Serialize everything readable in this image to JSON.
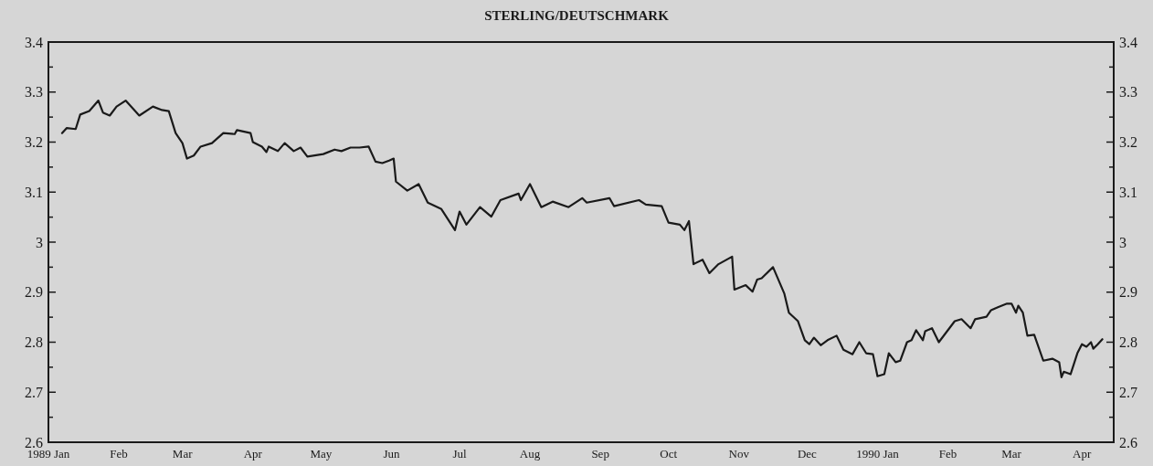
{
  "chart_data": {
    "type": "line",
    "title": "STERLING/DEUTSCHMARK",
    "x": [
      "1989-01-07",
      "1989-01-09",
      "1989-01-13",
      "1989-01-15",
      "1989-01-19",
      "1989-01-23",
      "1989-01-25",
      "1989-01-28",
      "1989-01-31",
      "1989-02-04",
      "1989-02-06",
      "1989-02-10",
      "1989-02-16",
      "1989-02-20",
      "1989-02-23",
      "1989-02-26",
      "1989-03-01",
      "1989-03-03",
      "1989-03-06",
      "1989-03-09",
      "1989-03-14",
      "1989-03-19",
      "1989-03-24",
      "1989-03-25",
      "1989-03-31",
      "1989-04-01",
      "1989-04-05",
      "1989-04-07",
      "1989-04-08",
      "1989-04-12",
      "1989-04-15",
      "1989-04-19",
      "1989-04-22",
      "1989-04-25",
      "1989-05-02",
      "1989-05-07",
      "1989-05-10",
      "1989-05-14",
      "1989-05-18",
      "1989-05-22",
      "1989-05-25",
      "1989-05-28",
      "1989-05-31",
      "1989-06-02",
      "1989-06-03",
      "1989-06-08",
      "1989-06-13",
      "1989-06-17",
      "1989-06-23",
      "1989-06-29",
      "1989-07-01",
      "1989-07-04",
      "1989-07-10",
      "1989-07-15",
      "1989-07-19",
      "1989-07-27",
      "1989-07-28",
      "1989-08-01",
      "1989-08-06",
      "1989-08-11",
      "1989-08-18",
      "1989-08-24",
      "1989-08-26",
      "1989-09-05",
      "1989-09-07",
      "1989-09-18",
      "1989-09-21",
      "1989-09-28",
      "1989-10-01",
      "1989-10-06",
      "1989-10-08",
      "1989-10-10",
      "1989-10-12",
      "1989-10-16",
      "1989-10-19",
      "1989-10-23",
      "1989-10-29",
      "1989-10-30",
      "1989-11-04",
      "1989-11-07",
      "1989-11-09",
      "1989-11-11",
      "1989-11-16",
      "1989-11-21",
      "1989-11-23",
      "1989-11-27",
      "1989-11-30",
      "1989-12-02",
      "1989-12-04",
      "1989-12-07",
      "1989-12-10",
      "1989-12-14",
      "1989-12-17",
      "1989-12-21",
      "1989-12-24",
      "1989-12-27",
      "1989-12-30",
      "1990-01-01",
      "1990-01-04",
      "1990-01-06",
      "1990-01-09",
      "1990-01-11",
      "1990-01-14",
      "1990-01-16",
      "1990-01-18",
      "1990-01-21",
      "1990-01-22",
      "1990-01-25",
      "1990-01-28",
      "1990-02-04",
      "1990-02-07",
      "1990-02-11",
      "1990-02-13",
      "1990-02-18",
      "1990-02-20",
      "1990-02-23",
      "1990-02-27",
      "1990-03-01",
      "1990-03-03",
      "1990-03-04",
      "1990-03-06",
      "1990-03-08",
      "1990-03-11",
      "1990-03-15",
      "1990-03-19",
      "1990-03-22",
      "1990-03-23",
      "1990-03-24",
      "1990-03-27",
      "1990-03-30",
      "1990-04-01",
      "1990-04-03",
      "1990-04-05",
      "1990-04-06",
      "1990-04-08",
      "1990-04-10"
    ],
    "series": [
      {
        "color": "#1a1a1a",
        "values": [
          3.218,
          3.228,
          3.226,
          3.255,
          3.262,
          3.283,
          3.259,
          3.253,
          3.271,
          3.283,
          3.273,
          3.253,
          3.271,
          3.264,
          3.262,
          3.218,
          3.198,
          3.167,
          3.173,
          3.191,
          3.198,
          3.218,
          3.216,
          3.224,
          3.218,
          3.2,
          3.191,
          3.18,
          3.191,
          3.182,
          3.198,
          3.182,
          3.189,
          3.171,
          3.176,
          3.185,
          3.182,
          3.189,
          3.189,
          3.191,
          3.161,
          3.158,
          3.163,
          3.167,
          3.121,
          3.103,
          3.116,
          3.079,
          3.066,
          3.024,
          3.061,
          3.035,
          3.07,
          3.051,
          3.084,
          3.097,
          3.084,
          3.116,
          3.07,
          3.081,
          3.07,
          3.088,
          3.079,
          3.088,
          3.072,
          3.084,
          3.075,
          3.072,
          3.039,
          3.035,
          3.024,
          3.042,
          2.956,
          2.965,
          2.938,
          2.956,
          2.971,
          2.905,
          2.914,
          2.901,
          2.925,
          2.928,
          2.95,
          2.897,
          2.859,
          2.842,
          2.804,
          2.796,
          2.809,
          2.794,
          2.804,
          2.813,
          2.785,
          2.776,
          2.8,
          2.778,
          2.776,
          2.732,
          2.736,
          2.778,
          2.76,
          2.763,
          2.8,
          2.804,
          2.824,
          2.804,
          2.822,
          2.828,
          2.8,
          2.842,
          2.846,
          2.828,
          2.846,
          2.851,
          2.864,
          2.87,
          2.877,
          2.877,
          2.859,
          2.873,
          2.859,
          2.813,
          2.815,
          2.763,
          2.767,
          2.76,
          2.73,
          2.741,
          2.736,
          2.778,
          2.796,
          2.791,
          2.8,
          2.787,
          2.796,
          2.806
        ]
      }
    ],
    "xlim": [
      "1989-01-01",
      "1990-04-15"
    ],
    "xticks": [
      {
        "value": "1989-01-01",
        "label": "1989 Jan"
      },
      {
        "value": "1989-02-01",
        "label": "Feb"
      },
      {
        "value": "1989-03-01",
        "label": "Mar"
      },
      {
        "value": "1989-04-01",
        "label": "Apr"
      },
      {
        "value": "1989-05-01",
        "label": "May"
      },
      {
        "value": "1989-06-01",
        "label": "Jun"
      },
      {
        "value": "1989-07-01",
        "label": "Jul"
      },
      {
        "value": "1989-08-01",
        "label": "Aug"
      },
      {
        "value": "1989-09-01",
        "label": "Sep"
      },
      {
        "value": "1989-10-01",
        "label": "Oct"
      },
      {
        "value": "1989-11-01",
        "label": "Nov"
      },
      {
        "value": "1989-12-01",
        "label": "Dec"
      },
      {
        "value": "1990-01-01",
        "label": "1990 Jan"
      },
      {
        "value": "1990-02-01",
        "label": "Feb"
      },
      {
        "value": "1990-03-01",
        "label": "Mar"
      },
      {
        "value": "1990-04-01",
        "label": "Apr"
      }
    ],
    "ylim": [
      2.6,
      3.4
    ],
    "yticks": [
      2.6,
      {
        "value": 2.65,
        "label": null
      },
      2.7,
      {
        "value": 2.75,
        "label": null
      },
      2.8,
      {
        "value": 2.85,
        "label": null
      },
      2.9,
      {
        "value": 2.95,
        "label": null
      },
      3,
      {
        "value": 3.05,
        "label": null
      },
      3.1,
      {
        "value": 3.15,
        "label": null
      },
      3.2,
      {
        "value": 3.25,
        "label": null
      },
      3.3,
      {
        "value": 3.35,
        "label": null
      },
      3.4
    ],
    "y2lim": [
      2.6,
      3.4
    ],
    "y2ticks": [
      2.6,
      {
        "value": 2.65,
        "label": null
      },
      2.7,
      {
        "value": 2.75,
        "label": null
      },
      2.8,
      {
        "value": 2.85,
        "label": null
      },
      2.9,
      {
        "value": 2.95,
        "label": null
      },
      3,
      {
        "value": 3.05,
        "label": null
      },
      3.1,
      {
        "value": 3.15,
        "label": null
      },
      3.2,
      {
        "value": 3.25,
        "label": null
      },
      3.3,
      {
        "value": 3.35,
        "label": null
      },
      3.4
    ],
    "grid": false,
    "marker": "none",
    "line_style": "solid"
  }
}
